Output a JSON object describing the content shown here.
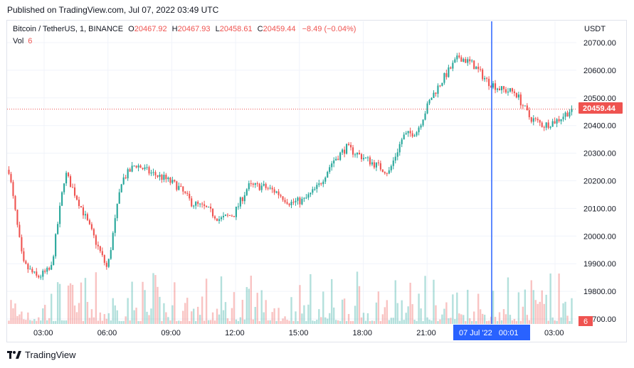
{
  "header": {
    "published": "Published on TradingView.com, Jul 07, 2022 03:49 UTC"
  },
  "legend": {
    "symbol": "Bitcoin / TetherUS, 1, BINANCE",
    "o_label": "O",
    "o": "20467.92",
    "h_label": "H",
    "h": "20467.93",
    "l_label": "L",
    "l": "20458.61",
    "c_label": "C",
    "c": "20459.44",
    "change": "−8.49 (−0.04%)",
    "vol_label": "Vol",
    "vol": "6"
  },
  "axis": {
    "currency": "USDT",
    "price_ticks": [
      "20700.00",
      "20600.00",
      "20500.00",
      "20400.00",
      "20300.00",
      "20200.00",
      "20100.00",
      "20000.00",
      "19900.00",
      "19800.00",
      "19700.00"
    ],
    "time_ticks": [
      "03:00",
      "06:00",
      "09:00",
      "12:00",
      "15:00",
      "18:00",
      "21:00",
      "03:00"
    ],
    "current_price_label": "20459.44",
    "current_vol_label": "6",
    "crosshair_label": "07 Jul '22   00:01"
  },
  "colors": {
    "up": "#26a69a",
    "down": "#ef5350",
    "crosshair": "#2962ff",
    "grid": "#f0f3fa"
  },
  "footer": {
    "brand": "TradingView"
  },
  "chart_data": {
    "type": "candlestick",
    "title": "Bitcoin / TetherUS, 1, BINANCE",
    "ylabel": "USDT",
    "ylim": [
      19665,
      20715
    ],
    "x_ticks": [
      "03:00",
      "06:00",
      "09:00",
      "12:00",
      "15:00",
      "18:00",
      "21:00",
      "03:00"
    ],
    "current_price": 20459.44,
    "close_series": [
      20240,
      19900,
      19850,
      19880,
      20230,
      20120,
      20000,
      19880,
      20200,
      20260,
      20230,
      20210,
      20180,
      20120,
      20100,
      20060,
      20080,
      20180,
      20180,
      20160,
      20120,
      20130,
      20180,
      20270,
      20320,
      20290,
      20260,
      20230,
      20360,
      20380,
      20500,
      20580,
      20650,
      20620,
      20560,
      20530,
      20520,
      20430,
      20400,
      20420,
      20459.44
    ]
  }
}
